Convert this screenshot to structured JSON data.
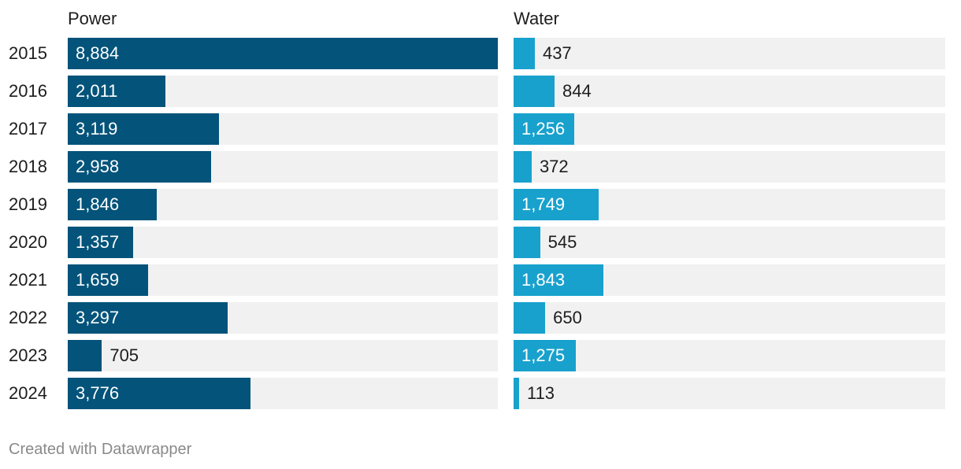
{
  "chart_data": {
    "type": "bar",
    "orientation": "horizontal",
    "categories": [
      "2015",
      "2016",
      "2017",
      "2018",
      "2019",
      "2020",
      "2021",
      "2022",
      "2023",
      "2024"
    ],
    "series": [
      {
        "name": "Power",
        "color": "#03537a",
        "values": [
          8884,
          2011,
          3119,
          2958,
          1846,
          1357,
          1659,
          3297,
          705,
          3776
        ]
      },
      {
        "name": "Water",
        "color": "#18a1cd",
        "values": [
          437,
          844,
          1256,
          372,
          1749,
          545,
          1843,
          650,
          1275,
          113
        ]
      }
    ],
    "xlim": [
      0,
      8884
    ],
    "value_labels": [
      [
        "8,884",
        "2,011",
        "3,119",
        "2,958",
        "1,846",
        "1,357",
        "1,659",
        "3,297",
        "705",
        "3,776"
      ],
      [
        "437",
        "844",
        "1,256",
        "372",
        "1,749",
        "545",
        "1,843",
        "650",
        "1,275",
        "113"
      ]
    ],
    "track_color": "#f1f1f1",
    "grid": false,
    "legend": "none"
  },
  "footer": {
    "credit": "Created with Datawrapper"
  }
}
